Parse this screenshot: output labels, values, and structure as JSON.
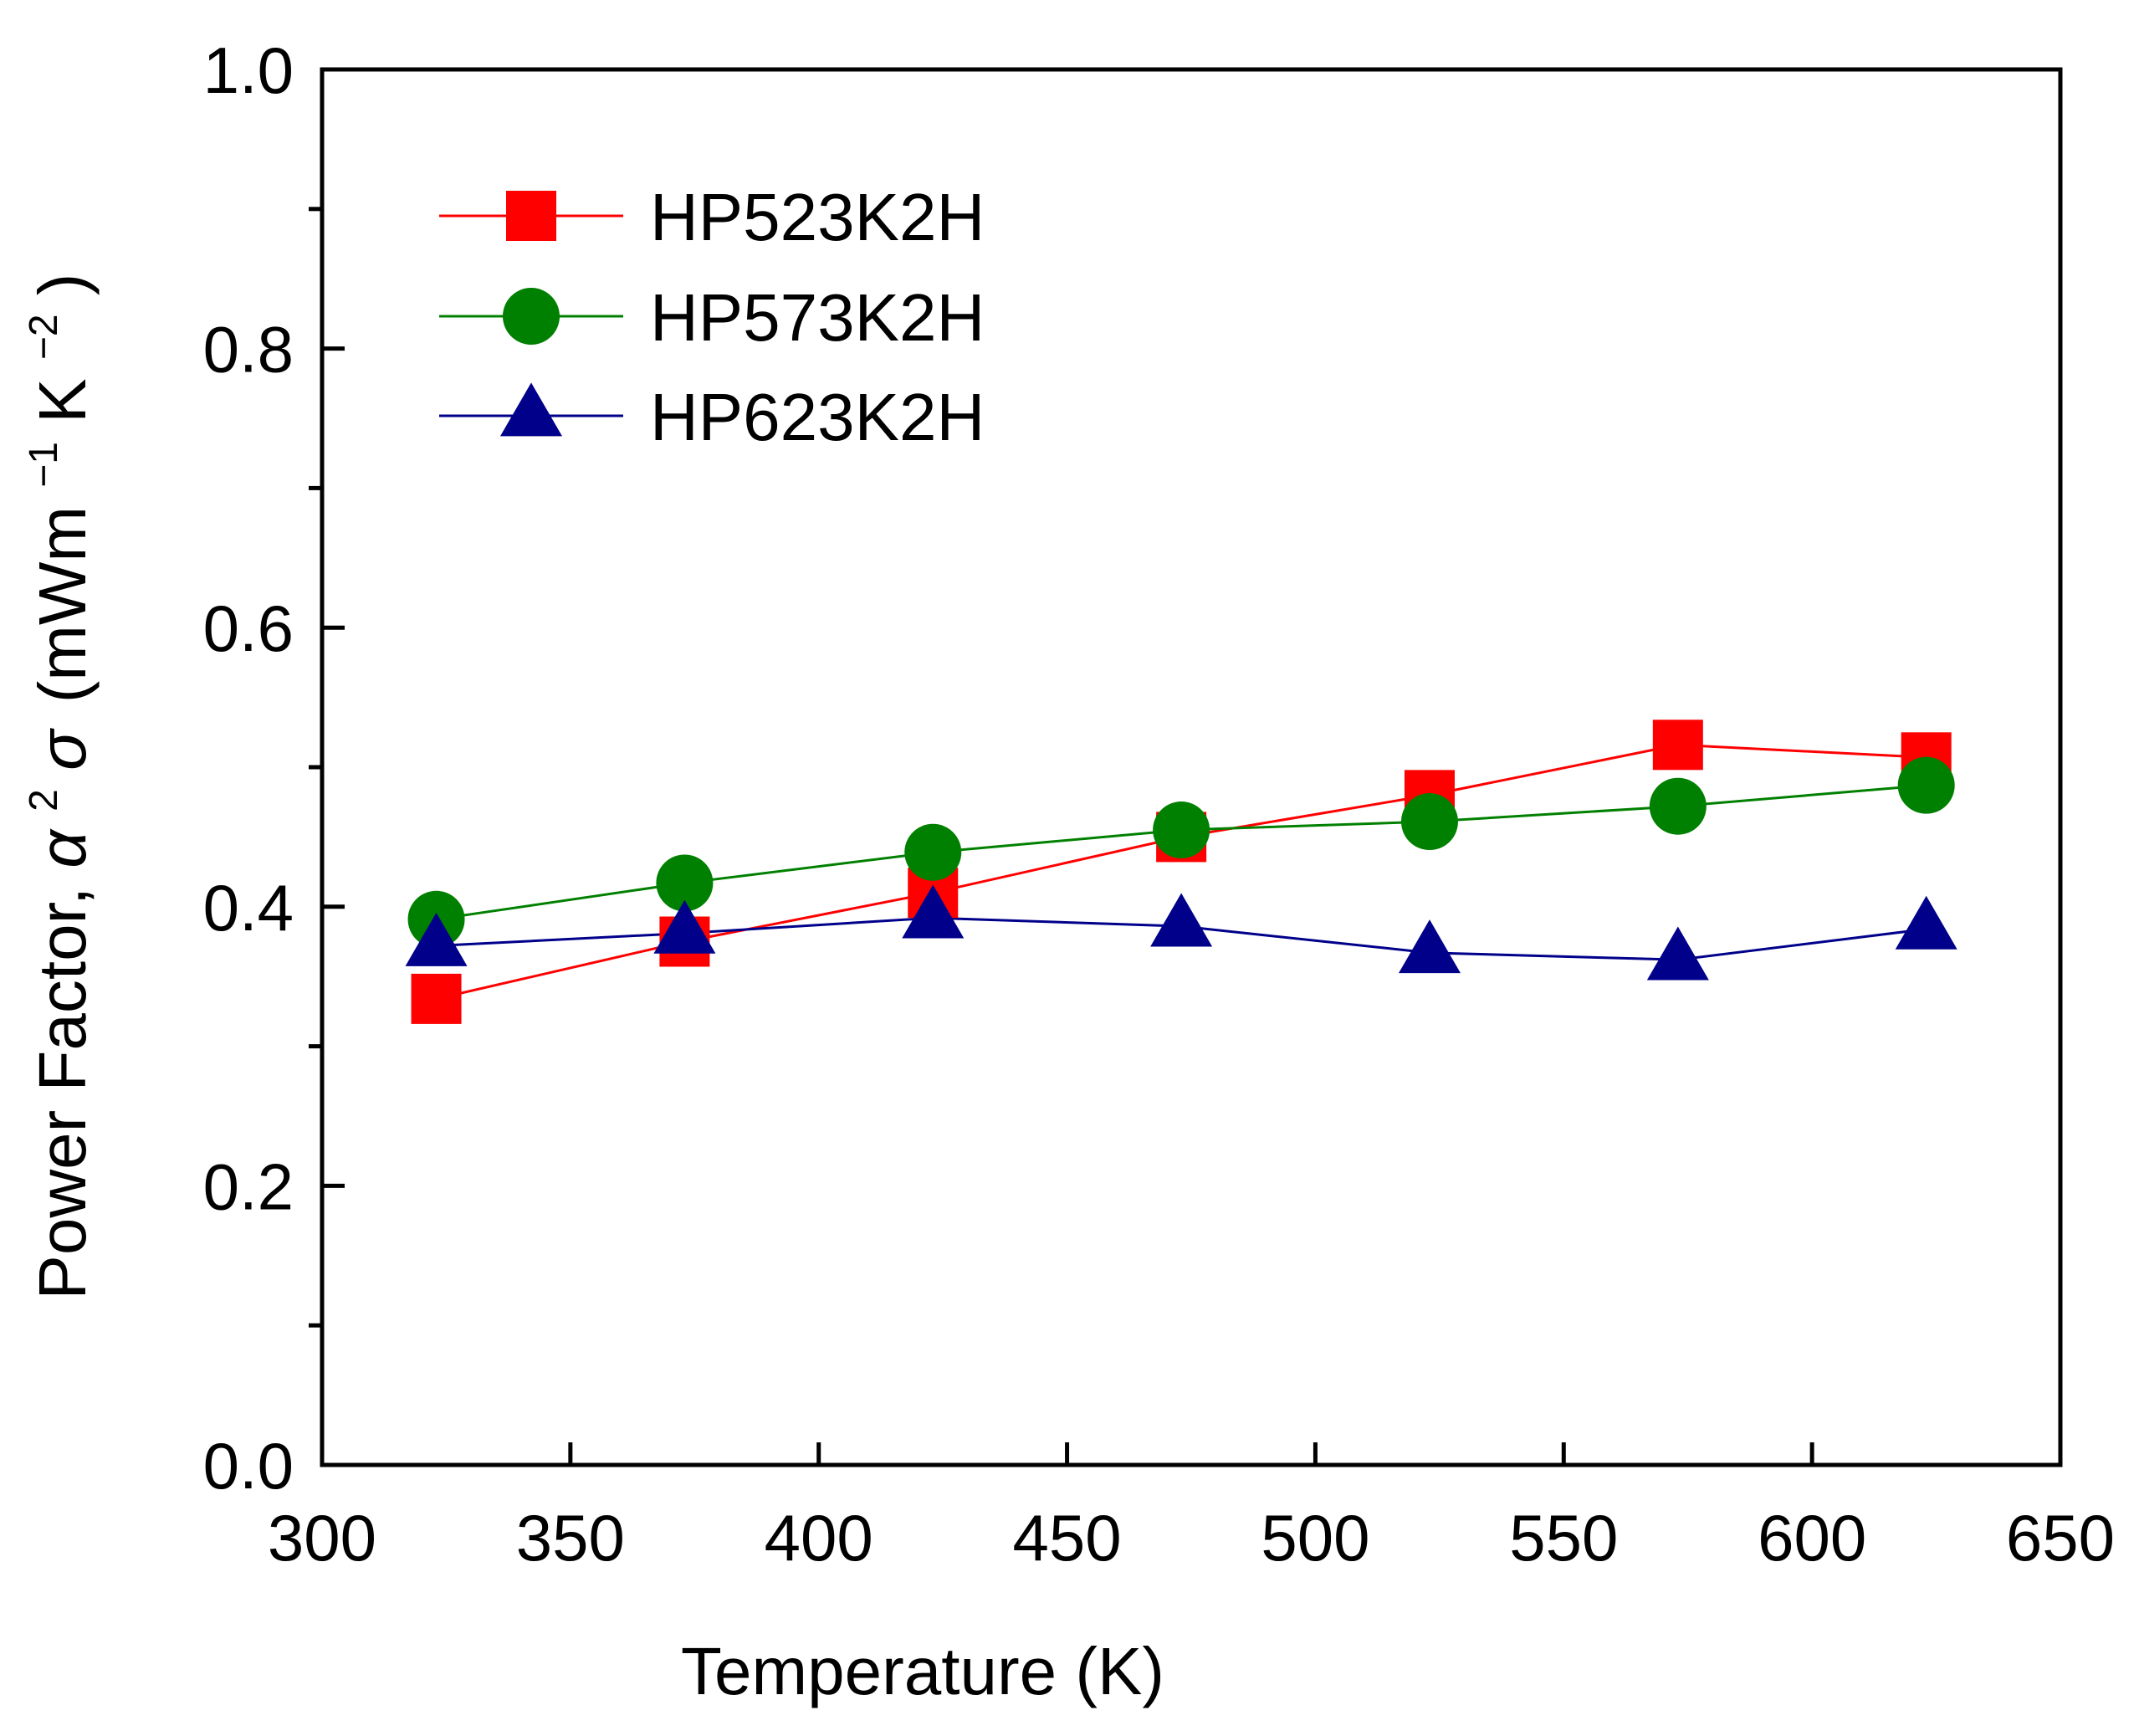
{
  "chart_data": {
    "type": "line",
    "title": "",
    "xlabel": "Temperature (K)",
    "ylabel": {
      "prefix": "Power Factor, ",
      "alpha": "α",
      "alpha_exp": "2",
      "sigma": "σ",
      "units_open": "(mWm",
      "m_exp": "−1",
      "k": "K",
      "k_exp": "−2",
      "units_close": ")"
    },
    "xlim": [
      300,
      650
    ],
    "ylim": [
      0.0,
      1.0
    ],
    "x_ticks": [
      300,
      350,
      400,
      450,
      500,
      550,
      600,
      650
    ],
    "x_tick_labels": [
      "300",
      "350",
      "400",
      "450",
      "500",
      "550",
      "600",
      "650"
    ],
    "y_ticks": [
      0.0,
      0.2,
      0.4,
      0.6,
      0.8,
      1.0
    ],
    "y_tick_labels": [
      "0.0",
      "0.2",
      "0.4",
      "0.6",
      "0.8",
      "1.0"
    ],
    "y_minor_ticks": [
      0.1,
      0.3,
      0.5,
      0.7,
      0.9
    ],
    "x": [
      323,
      373,
      423,
      473,
      523,
      573,
      623
    ],
    "legend_position": "top-left",
    "grid": false,
    "series": [
      {
        "name": "HP523K2H",
        "color": "#ff0000",
        "marker": "square",
        "values": [
          0.334,
          0.375,
          0.41,
          0.45,
          0.48,
          0.516,
          0.507
        ]
      },
      {
        "name": "HP573K2H",
        "color": "#008000",
        "marker": "circle",
        "values": [
          0.391,
          0.417,
          0.439,
          0.455,
          0.461,
          0.472,
          0.487
        ]
      },
      {
        "name": "HP623K2H",
        "color": "#00008b",
        "marker": "triangle",
        "values": [
          0.372,
          0.381,
          0.392,
          0.386,
          0.367,
          0.362,
          0.384
        ]
      }
    ]
  }
}
